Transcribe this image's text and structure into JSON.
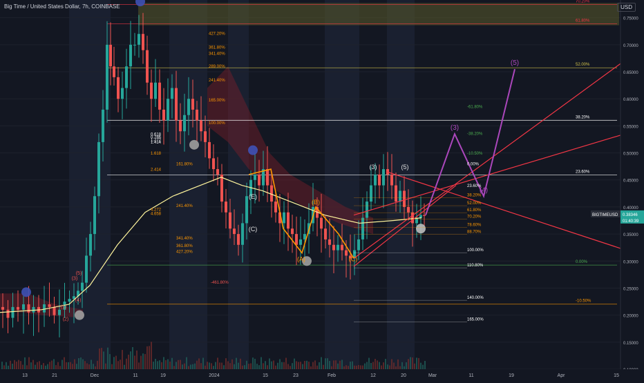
{
  "header": {
    "title": "Big Time / United States Dollar, 7h, COINBASE",
    "currency": "USD"
  },
  "ticker": {
    "symbol": "BIGTIMEUSD",
    "price": "0.38346",
    "countdown": "01:40:39"
  },
  "colors": {
    "bg": "#131722",
    "up": "#26a69a",
    "down": "#ef5350",
    "fib": "#ff9800",
    "wave": "#ab47bc",
    "channel": "#f23645",
    "grid": "#1e222d",
    "text": "#b2b5be"
  },
  "chart_data": {
    "type": "candlestick",
    "ylim": [
      0.1,
      0.77
    ],
    "y_ticks": [
      "0.75000",
      "0.70000",
      "0.65000",
      "0.60000",
      "0.55000",
      "0.50000",
      "0.45000",
      "0.40000",
      "0.35000",
      "0.30000",
      "0.25000",
      "0.20000",
      "0.15000",
      "0.10000"
    ],
    "x_ticks": [
      "13",
      "21",
      "Dec",
      "11",
      "19",
      "2024",
      "15",
      "23",
      "Feb",
      "12",
      "20",
      "Mar",
      "11",
      "19",
      "Apr",
      "15"
    ],
    "price_path": [
      [
        0,
        0.215
      ],
      [
        8,
        0.21
      ],
      [
        15,
        0.195
      ],
      [
        22,
        0.215
      ],
      [
        30,
        0.21
      ],
      [
        38,
        0.22
      ],
      [
        45,
        0.205
      ],
      [
        52,
        0.215
      ],
      [
        60,
        0.205
      ],
      [
        68,
        0.22
      ],
      [
        75,
        0.215
      ],
      [
        82,
        0.2
      ],
      [
        90,
        0.21
      ],
      [
        97,
        0.225
      ],
      [
        104,
        0.23
      ],
      [
        110,
        0.235
      ],
      [
        116,
        0.245
      ],
      [
        122,
        0.26
      ],
      [
        128,
        0.31
      ],
      [
        134,
        0.35
      ],
      [
        140,
        0.42
      ],
      [
        146,
        0.52
      ],
      [
        152,
        0.58
      ],
      [
        158,
        0.7
      ],
      [
        162,
        0.66
      ],
      [
        168,
        0.64
      ],
      [
        174,
        0.6
      ],
      [
        180,
        0.62
      ],
      [
        186,
        0.66
      ],
      [
        192,
        0.7
      ],
      [
        198,
        0.7
      ],
      [
        204,
        0.72
      ],
      [
        210,
        0.69
      ],
      [
        216,
        0.63
      ],
      [
        222,
        0.6
      ],
      [
        228,
        0.63
      ],
      [
        234,
        0.58
      ],
      [
        240,
        0.56
      ],
      [
        246,
        0.6
      ],
      [
        252,
        0.62
      ],
      [
        258,
        0.56
      ],
      [
        264,
        0.54
      ],
      [
        270,
        0.57
      ],
      [
        276,
        0.6
      ],
      [
        282,
        0.58
      ],
      [
        288,
        0.56
      ],
      [
        294,
        0.54
      ],
      [
        300,
        0.52
      ],
      [
        306,
        0.49
      ],
      [
        312,
        0.47
      ],
      [
        318,
        0.46
      ],
      [
        324,
        0.41
      ],
      [
        330,
        0.39
      ],
      [
        336,
        0.36
      ],
      [
        342,
        0.35
      ],
      [
        348,
        0.33
      ],
      [
        354,
        0.37
      ],
      [
        360,
        0.42
      ],
      [
        366,
        0.45
      ],
      [
        372,
        0.46
      ],
      [
        378,
        0.44
      ],
      [
        384,
        0.47
      ],
      [
        390,
        0.44
      ],
      [
        396,
        0.41
      ],
      [
        402,
        0.39
      ],
      [
        408,
        0.37
      ],
      [
        414,
        0.39
      ],
      [
        420,
        0.36
      ],
      [
        426,
        0.35
      ],
      [
        432,
        0.33
      ],
      [
        438,
        0.34
      ],
      [
        444,
        0.35
      ],
      [
        450,
        0.37
      ],
      [
        456,
        0.4
      ],
      [
        462,
        0.38
      ],
      [
        468,
        0.36
      ],
      [
        474,
        0.34
      ],
      [
        480,
        0.33
      ],
      [
        486,
        0.32
      ],
      [
        492,
        0.33
      ],
      [
        498,
        0.32
      ],
      [
        504,
        0.31
      ],
      [
        510,
        0.305
      ],
      [
        516,
        0.32
      ],
      [
        522,
        0.34
      ],
      [
        528,
        0.38
      ],
      [
        534,
        0.41
      ],
      [
        540,
        0.44
      ],
      [
        546,
        0.46
      ],
      [
        552,
        0.44
      ],
      [
        558,
        0.47
      ],
      [
        564,
        0.46
      ],
      [
        570,
        0.44
      ],
      [
        576,
        0.41
      ],
      [
        582,
        0.43
      ],
      [
        588,
        0.4
      ],
      [
        594,
        0.39
      ],
      [
        600,
        0.37
      ],
      [
        606,
        0.38
      ],
      [
        612,
        0.385
      ],
      [
        616,
        0.3835
      ]
    ],
    "ema_path": [
      [
        0,
        0.205
      ],
      [
        60,
        0.21
      ],
      [
        100,
        0.22
      ],
      [
        130,
        0.255
      ],
      [
        170,
        0.33
      ],
      [
        210,
        0.39
      ],
      [
        250,
        0.42
      ],
      [
        290,
        0.44
      ],
      [
        320,
        0.455
      ],
      [
        350,
        0.44
      ],
      [
        380,
        0.43
      ],
      [
        420,
        0.41
      ],
      [
        470,
        0.385
      ],
      [
        520,
        0.37
      ],
      [
        570,
        0.375
      ],
      [
        610,
        0.38
      ]
    ],
    "horizontal_levels": [
      {
        "value": 0.5603,
        "label": "38.20%",
        "color": "#ffffff"
      },
      {
        "value": 0.4592,
        "label": "23.60%",
        "color": "#ffffff"
      },
      {
        "value": 0.6574,
        "label": "52.00%",
        "color": "#d4c44b"
      },
      {
        "value": 0.7386,
        "label": "61.80%",
        "color": "#f23645"
      },
      {
        "value": 0.7746,
        "label": "70.20%",
        "color": "#f23645"
      },
      {
        "value": 0.2203,
        "label": "-10.50%",
        "color": "#ff9800"
      },
      {
        "value": 0.2925,
        "label": "0.00%",
        "color": "#4caf50"
      }
    ],
    "left_fib_labels": [
      "427.20%",
      "361.80%",
      "341.40%",
      "289.00%",
      "241.40%",
      "165.00%",
      "100.00%",
      "161.80%",
      "241.40%",
      "341.40%",
      "361.80%",
      "427.20%",
      "-461.80%"
    ],
    "right_fib_labels": [
      "-61.80%",
      "-38.20%",
      "-10.50%",
      "0.00%",
      "23.60%",
      "38.20%",
      "52.00%",
      "61.80%",
      "70.20%",
      "78.60%",
      "88.70%",
      "100.00%",
      "110.80%",
      "140.00%",
      "165.00%"
    ],
    "wave_labels": [
      "(1)",
      "(2)",
      "(3)",
      "(4)",
      "(5)",
      "(A)",
      "(B)",
      "(C)",
      "(3)",
      "(5)",
      "(E)",
      "(C)"
    ],
    "projection": [
      [
        0.385,
        "start"
      ],
      [
        0.535,
        "(3)"
      ],
      [
        0.42,
        "(4)"
      ],
      [
        0.655,
        "(5)"
      ]
    ],
    "misc_labels": [
      "1.618",
      "2.414",
      "4.272",
      "4.658",
      "0.618",
      "0.786",
      "1.272",
      "1.414"
    ]
  }
}
